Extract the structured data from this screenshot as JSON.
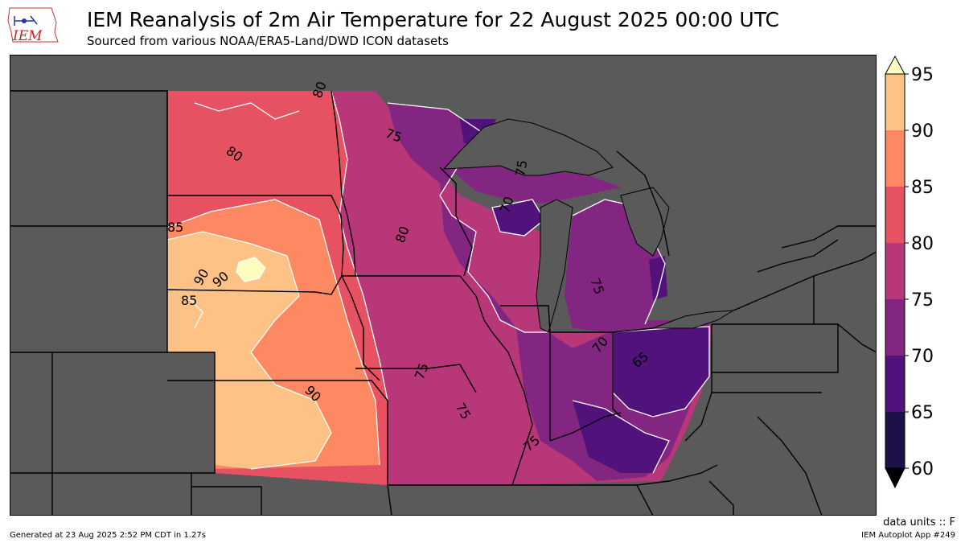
{
  "header": {
    "logo_text": "IEM",
    "title": "IEM Reanalysis of 2m Air Temperature for 22 August 2025 00:00 UTC",
    "subtitle": "Sourced from various NOAA/ERA5-Land/DWD ICON datasets"
  },
  "colorbar": {
    "ticks": [
      "60",
      "65",
      "70",
      "75",
      "80",
      "85",
      "90",
      "95"
    ],
    "colors": [
      "#1d1147",
      "#51127c",
      "#822681",
      "#b73779",
      "#e75263",
      "#fc8961",
      "#fec287",
      "#fcfdbf"
    ],
    "extend": "both"
  },
  "contour_labels": [
    "80",
    "75",
    "80",
    "75",
    "85",
    "90",
    "90",
    "85",
    "80",
    "70",
    "75",
    "70",
    "65",
    "75",
    "75",
    "90",
    "75"
  ],
  "units": "data units :: F",
  "footer": {
    "generated": "Generated at 23 Aug 2025 2:52 PM CDT in 1.27s",
    "app": "IEM Autoplot App #249"
  },
  "colors": {
    "water_background": "#5a5a5a",
    "state_border": "#000000",
    "contour_line": "#ffffff"
  }
}
